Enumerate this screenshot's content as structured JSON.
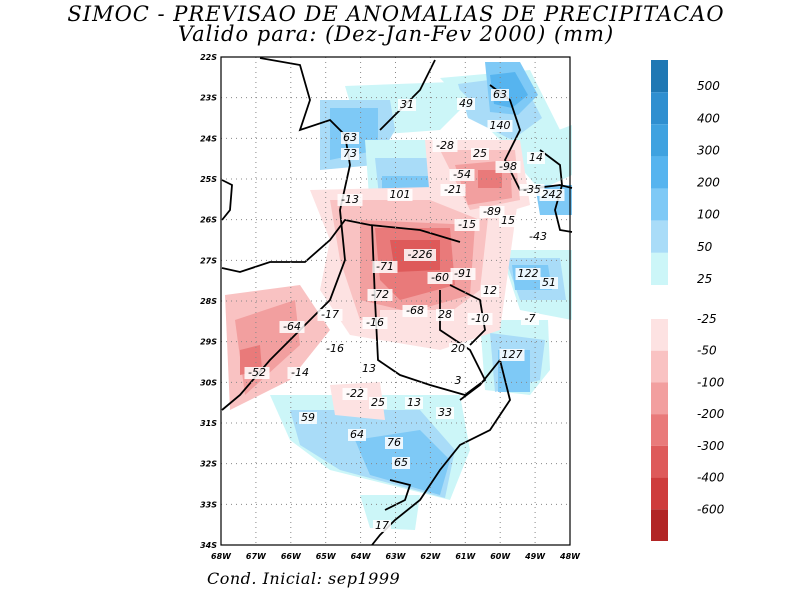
{
  "title": "SIMOC - PREVISAO DE ANOMALIAS DE PRECIPITACAO",
  "subtitle": "Valido para: (Dez-Jan-Fev 2000) (mm)",
  "footer": "Cond. Inicial: sep1999",
  "chart_data": {
    "type": "heatmap",
    "x_range": [
      -68,
      -48
    ],
    "y_range": [
      -34,
      -22
    ],
    "x_ticks": [
      "68W",
      "67W",
      "66W",
      "65W",
      "64W",
      "63W",
      "62W",
      "61W",
      "60W",
      "49W",
      "48W"
    ],
    "y_ticks": [
      "22S",
      "23S",
      "24S",
      "25S",
      "26S",
      "27S",
      "28S",
      "29S",
      "30S",
      "31S",
      "32S",
      "33S",
      "34S"
    ],
    "grid": true,
    "colorbar_positive": {
      "labels": [
        "500",
        "400",
        "300",
        "200",
        "100",
        "50",
        "25"
      ],
      "colors": [
        "#1f78b4",
        "#2f8fd0",
        "#3fa2e0",
        "#56b4ef",
        "#7ec9f6",
        "#a9dcf8",
        "#ccf6f8"
      ]
    },
    "colorbar_negative": {
      "labels": [
        "-25",
        "-50",
        "-100",
        "-200",
        "-300",
        "-400",
        "-600"
      ],
      "colors": [
        "#fde2e2",
        "#f9c2c2",
        "#f29f9f",
        "#e97a7a",
        "#de5a5a",
        "#ce3c3c",
        "#b22525"
      ]
    },
    "annotations": [
      "31",
      "49",
      "63",
      "63",
      "73",
      "-28",
      "140",
      "25",
      "-98",
      "14",
      "-54",
      "-21",
      "101",
      "-35",
      "242",
      "-13",
      "-89",
      "15",
      "-15",
      "-43",
      "-226",
      "-71",
      "-60",
      "-91",
      "122",
      "51",
      "12",
      "-72",
      "-68",
      "28",
      "-10",
      "-7",
      "-17",
      "-64",
      "-16",
      "20",
      "-16",
      "127",
      "-52",
      "-14",
      "13",
      "3",
      "-22",
      "25",
      "13",
      "59",
      "33",
      "64",
      "76",
      "65",
      "17"
    ]
  }
}
